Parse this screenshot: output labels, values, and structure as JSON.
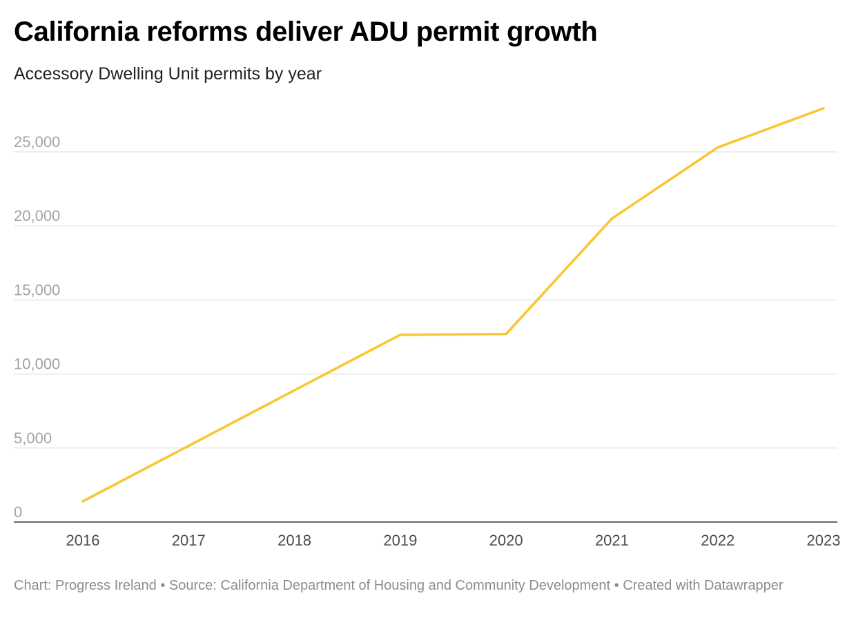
{
  "title": "California reforms deliver ADU permit growth",
  "subtitle": "Accessory Dwelling Unit permits by year",
  "footer": {
    "chart_label": "Chart: Progress Ireland",
    "separator": " • ",
    "source_label": "Source: California Department of Housing and Community Development",
    "created_label": "Created with Datawrapper"
  },
  "colors": {
    "line": "#f9c733",
    "grid": "#e0e0e0",
    "axis": "#333333",
    "tick_y": "#a3a3a3",
    "tick_x": "#4d4d4d"
  },
  "chart_data": {
    "type": "line",
    "title": "California reforms deliver ADU permit growth",
    "subtitle": "Accessory Dwelling Unit permits by year",
    "xlabel": "",
    "ylabel": "",
    "x": [
      "2016",
      "2017",
      "2018",
      "2019",
      "2020",
      "2021",
      "2022",
      "2023"
    ],
    "series": [
      {
        "values": [
          1400,
          5150,
          8900,
          12650,
          12700,
          20500,
          25300,
          27950
        ]
      }
    ],
    "ylim": [
      0,
      28500
    ],
    "yticks": [
      0,
      5000,
      10000,
      15000,
      20000,
      25000
    ],
    "ytick_labels": [
      "0",
      "5,000",
      "10,000",
      "15,000",
      "20,000",
      "25,000"
    ],
    "grid": true,
    "legend": "none"
  }
}
